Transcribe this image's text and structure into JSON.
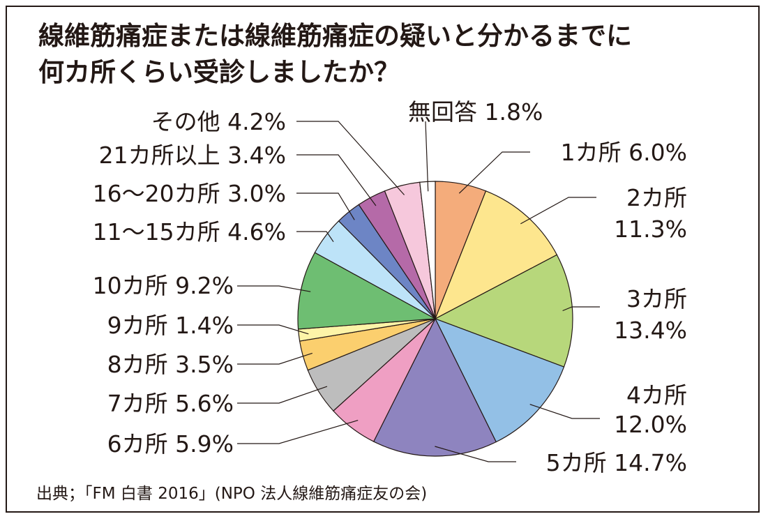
{
  "title_line1": "線維筋痛症または線維筋痛症の疑いと分かるまでに",
  "title_line2": "何カ所くらい受診しましたか？",
  "source": "出典；「FM 白書 2016」(NPO 法人線維筋痛症友の会)",
  "chart_data": {
    "type": "pie",
    "title": "線維筋痛症または線維筋痛症の疑いと分かるまでに何カ所くらい受診しましたか？",
    "start": "12 o'clock",
    "direction": "clockwise",
    "legend": "none",
    "slices": [
      {
        "label": "1カ所",
        "value": 6.0,
        "text": "6.0%",
        "color": "#f4ac7b"
      },
      {
        "label": "2カ所",
        "value": 11.3,
        "text": "11.3%",
        "color": "#fde68e"
      },
      {
        "label": "3カ所",
        "value": 13.4,
        "text": "13.4%",
        "color": "#b7d77b"
      },
      {
        "label": "4カ所",
        "value": 12.0,
        "text": "12.0%",
        "color": "#93c0e6"
      },
      {
        "label": "5カ所",
        "value": 14.7,
        "text": "14.7%",
        "color": "#8e84bf"
      },
      {
        "label": "6カ所",
        "value": 5.9,
        "text": "5.9%",
        "color": "#ef9fc3"
      },
      {
        "label": "7カ所",
        "value": 5.6,
        "text": "5.6%",
        "color": "#bdbdbd"
      },
      {
        "label": "8カ所",
        "value": 3.5,
        "text": "3.5%",
        "color": "#fbcf6e"
      },
      {
        "label": "9カ所",
        "value": 1.4,
        "text": "1.4%",
        "color": "#fdf4a8"
      },
      {
        "label": "10カ所",
        "value": 9.2,
        "text": "9.2%",
        "color": "#6ebe72"
      },
      {
        "label": "11～15カ所",
        "value": 4.6,
        "text": "4.6%",
        "color": "#bde3f8"
      },
      {
        "label": "16～20カ所",
        "value": 3.0,
        "text": "3.0%",
        "color": "#6d85c5"
      },
      {
        "label": "21カ所以上",
        "value": 3.4,
        "text": "3.4%",
        "color": "#b56aa8"
      },
      {
        "label": "その他",
        "value": 4.2,
        "text": "4.2%",
        "color": "#f6c8dc"
      },
      {
        "label": "無回答",
        "value": 1.8,
        "text": "1.8%",
        "color": "#ffffff"
      }
    ]
  }
}
